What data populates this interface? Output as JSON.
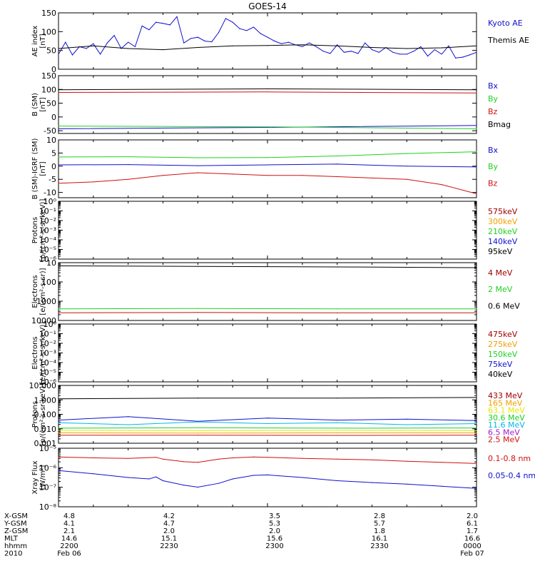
{
  "title": "GOES-14",
  "colors": {
    "black": "#000000",
    "blue": "#1010d0",
    "red": "#d01010",
    "green": "#20d020",
    "orange": "#f0a000",
    "yellow": "#e8e800",
    "cyan": "#00b8e8",
    "purple": "#a020d0",
    "darkred": "#a00000"
  },
  "chart_data": [
    {
      "type": "line",
      "panel": "ae",
      "ylabel": [
        "AE index",
        "[nT]"
      ],
      "ylim": [
        0,
        150
      ],
      "scale": "linear",
      "yticks": [
        "0",
        "50",
        "100",
        "150"
      ],
      "legend": [
        {
          "label": "Kyoto AE",
          "color": "blue"
        },
        {
          "label": "Themis AE",
          "color": "black"
        }
      ],
      "series": [
        {
          "name": "Kyoto AE",
          "color": "blue",
          "x": [
            0,
            1,
            2,
            3,
            4,
            5,
            6,
            7,
            8,
            9,
            10,
            11,
            12,
            13,
            14,
            15,
            16,
            17,
            18,
            19,
            20,
            21,
            22,
            23,
            24,
            25,
            26,
            27,
            28,
            29,
            30,
            31,
            32,
            33,
            34,
            35,
            36,
            37,
            38,
            39,
            40,
            41,
            42,
            43,
            44,
            45,
            46,
            47,
            48,
            49,
            50,
            51,
            52,
            53,
            54,
            55,
            56,
            57,
            58,
            59,
            60
          ],
          "y": [
            40,
            72,
            38,
            60,
            55,
            68,
            40,
            70,
            90,
            55,
            72,
            60,
            115,
            105,
            125,
            122,
            118,
            140,
            70,
            82,
            85,
            75,
            73,
            98,
            135,
            125,
            108,
            103,
            112,
            95,
            85,
            75,
            68,
            72,
            65,
            60,
            70,
            60,
            48,
            42,
            65,
            45,
            48,
            42,
            70,
            52,
            45,
            58,
            45,
            40,
            40,
            48,
            60,
            35,
            52,
            40,
            62,
            30,
            32,
            38,
            45
          ]
        },
        {
          "name": "Themis AE",
          "color": "black",
          "x": [
            0,
            5,
            10,
            15,
            20,
            25,
            30,
            35,
            40,
            45,
            50,
            55,
            60
          ],
          "y": [
            55,
            62,
            55,
            52,
            58,
            62,
            63,
            65,
            62,
            58,
            55,
            57,
            62
          ]
        }
      ]
    },
    {
      "type": "line",
      "panel": "b_sm",
      "ylabel": [
        "B (SM)",
        "[nT]"
      ],
      "ylim": [
        -60,
        150
      ],
      "scale": "linear",
      "yticks": [
        "-50",
        "0",
        "50",
        "100",
        "150"
      ],
      "legend": [
        {
          "label": "Bx",
          "color": "blue"
        },
        {
          "label": "By",
          "color": "green"
        },
        {
          "label": "Bz",
          "color": "red"
        },
        {
          "label": "Bmag",
          "color": "black"
        }
      ],
      "series": [
        {
          "name": "Bmag",
          "color": "black",
          "x": [
            0,
            30,
            60
          ],
          "y": [
            99,
            102,
            99
          ]
        },
        {
          "name": "Bz",
          "color": "red",
          "x": [
            0,
            30,
            60
          ],
          "y": [
            89,
            91,
            87
          ]
        },
        {
          "name": "Bx",
          "color": "blue",
          "x": [
            0,
            30,
            60
          ],
          "y": [
            -43,
            -38,
            -31
          ]
        },
        {
          "name": "By",
          "color": "green",
          "x": [
            0,
            30,
            60
          ],
          "y": [
            -33,
            -36,
            -43
          ]
        }
      ]
    },
    {
      "type": "line",
      "panel": "b_igrf",
      "ylabel": [
        "B (SM)-IGRF (SM)",
        "[nT]"
      ],
      "ylim": [
        -12,
        10
      ],
      "scale": "linear",
      "yticks": [
        "-10",
        "-5",
        "0",
        "5",
        "10"
      ],
      "legend": [
        {
          "label": "Bx",
          "color": "blue"
        },
        {
          "label": "By",
          "color": "green"
        },
        {
          "label": "Bz",
          "color": "red"
        }
      ],
      "series": [
        {
          "name": "By",
          "color": "green",
          "x": [
            0,
            10,
            20,
            30,
            40,
            50,
            60
          ],
          "y": [
            3.5,
            3.6,
            3.2,
            3.3,
            3.9,
            4.8,
            5.5
          ]
        },
        {
          "name": "Bx",
          "color": "blue",
          "x": [
            0,
            10,
            20,
            30,
            40,
            50,
            60
          ],
          "y": [
            0.5,
            0.6,
            0.2,
            0.5,
            0.8,
            0.0,
            -0.3
          ]
        },
        {
          "name": "Bz",
          "color": "red",
          "x": [
            0,
            5,
            10,
            15,
            20,
            25,
            30,
            35,
            40,
            45,
            50,
            55,
            60
          ],
          "y": [
            -6.5,
            -6,
            -5,
            -3.5,
            -2.5,
            -3,
            -3.5,
            -3.5,
            -4,
            -4.5,
            -5,
            -7,
            -10.5
          ]
        }
      ]
    },
    {
      "type": "line",
      "panel": "protons_low",
      "ylabel": [
        "Protons",
        "[p/(cm²-s-sr-keV)]"
      ],
      "ylim": [
        1e-06,
        1
      ],
      "scale": "log",
      "yticks": [
        "10⁰",
        "10⁻¹",
        "10⁻²",
        "10⁻³",
        "10⁻⁴",
        "10⁻⁵",
        "10⁻⁶"
      ],
      "legend": [
        {
          "label": "575keV",
          "color": "darkred"
        },
        {
          "label": "300keV",
          "color": "orange"
        },
        {
          "label": "210keV",
          "color": "green"
        },
        {
          "label": "140keV",
          "color": "blue"
        },
        {
          "label": "95keV",
          "color": "black"
        }
      ],
      "series": []
    },
    {
      "type": "line",
      "panel": "electrons_high",
      "ylabel": [
        "Electrons",
        "[e/(cm²-s-sr)]"
      ],
      "ylim": [
        10,
        10000
      ],
      "scale": "log",
      "yticks": [
        "10",
        "100",
        "1000",
        "10000"
      ],
      "legend": [
        {
          "label": "4 MeV",
          "color": "darkred"
        },
        {
          "label": "2 MeV",
          "color": "green"
        },
        {
          "label": "0.6 MeV",
          "color": "black"
        }
      ],
      "series": [
        {
          "name": "0.6 MeV",
          "color": "black",
          "x": [
            0,
            20,
            40,
            60
          ],
          "y": [
            6800,
            6400,
            6000,
            5500
          ]
        },
        {
          "name": "2 MeV",
          "color": "green",
          "x": [
            0,
            20,
            40,
            60
          ],
          "y": [
            40,
            42,
            40,
            40
          ]
        },
        {
          "name": "4 MeV",
          "color": "red",
          "x": [
            0,
            20,
            40,
            60
          ],
          "y": [
            25,
            26,
            25,
            25
          ]
        }
      ]
    },
    {
      "type": "line",
      "panel": "electrons_low",
      "ylabel": [
        "Electrons",
        "[e/(cm²-s-sr-keV)]"
      ],
      "ylim": [
        1e-06,
        1
      ],
      "scale": "log",
      "yticks": [
        "10⁰",
        "10⁻¹",
        "10⁻²",
        "10⁻³",
        "10⁻⁴",
        "10⁻⁵",
        "10⁻⁶"
      ],
      "legend": [
        {
          "label": "475keV",
          "color": "darkred"
        },
        {
          "label": "275keV",
          "color": "orange"
        },
        {
          "label": "150keV",
          "color": "green"
        },
        {
          "label": "75keV",
          "color": "blue"
        },
        {
          "label": "40keV",
          "color": "black"
        }
      ],
      "series": []
    },
    {
      "type": "line",
      "panel": "protons_high",
      "ylabel": [
        "Protons",
        "[p/(cm²-s-sr-keV)]"
      ],
      "ylim": [
        0.001,
        100
      ],
      "scale": "log",
      "yticks": [
        "10.000",
        "1.000",
        "0.100",
        "0.010",
        "0.001"
      ],
      "legend": [
        {
          "label": "433 MeV",
          "color": "darkred"
        },
        {
          "label": "165 MeV",
          "color": "orange"
        },
        {
          "label": "63.1 MeV",
          "color": "yellow"
        },
        {
          "label": "30.6 MeV",
          "color": "green"
        },
        {
          "label": "11.6 MeV",
          "color": "cyan"
        },
        {
          "label": "6.5 MeV",
          "color": "purple"
        },
        {
          "label": "2.5 MeV",
          "color": "red"
        }
      ],
      "series": [
        {
          "name": "2.5 MeV",
          "color": "black",
          "x": [
            0,
            20,
            40,
            60
          ],
          "y": [
            7,
            8,
            8,
            9
          ]
        },
        {
          "name": "6.5 MeV",
          "color": "blue",
          "x": [
            0,
            10,
            20,
            30,
            40,
            50,
            60
          ],
          "y": [
            0.1,
            0.2,
            0.08,
            0.15,
            0.1,
            0.12,
            0.09
          ]
        },
        {
          "name": "11.6 MeV",
          "color": "cyan",
          "x": [
            0,
            10,
            20,
            30,
            40,
            50,
            60
          ],
          "y": [
            0.06,
            0.04,
            0.07,
            0.05,
            0.06,
            0.04,
            0.05
          ]
        },
        {
          "name": "30.6 MeV",
          "color": "green",
          "x": [
            0,
            20,
            40,
            60
          ],
          "y": [
            0.02,
            0.022,
            0.02,
            0.021
          ]
        },
        {
          "name": "63.1 MeV",
          "color": "yellow",
          "x": [
            0,
            20,
            40,
            60
          ],
          "y": [
            0.013,
            0.012,
            0.013,
            0.012
          ]
        },
        {
          "name": "165 MeV",
          "color": "orange",
          "x": [
            0,
            20,
            40,
            60
          ],
          "y": [
            0.008,
            0.0075,
            0.008,
            0.0078
          ]
        },
        {
          "name": "433 MeV",
          "color": "red",
          "x": [
            0,
            20,
            40,
            60
          ],
          "y": [
            0.005,
            0.005,
            0.0048,
            0.005
          ]
        }
      ]
    },
    {
      "type": "line",
      "panel": "xray",
      "ylabel": [
        "Xray Flux",
        "[W/m²]"
      ],
      "ylim": [
        1e-09,
        1e-05
      ],
      "scale": "log",
      "yticks": [
        "10⁻⁵",
        "10⁻⁶",
        "10⁻⁷",
        "10⁻⁸"
      ],
      "legend": [
        {
          "label": "0.1-0.8 nm",
          "color": "red"
        },
        {
          "label": "0.05-0.4 nm",
          "color": "blue"
        }
      ],
      "series": [
        {
          "name": "0.1-0.8 nm",
          "color": "red",
          "x": [
            0,
            5,
            10,
            14,
            15,
            18,
            20,
            23,
            25,
            28,
            30,
            35,
            40,
            45,
            50,
            55,
            60
          ],
          "y": [
            2.5e-06,
            2.2e-06,
            2e-06,
            2.4e-06,
            1.8e-06,
            1.2e-06,
            1.1e-06,
            1.8e-06,
            2.2e-06,
            2.5e-06,
            2.4e-06,
            2e-06,
            1.8e-06,
            1.6e-06,
            1.3e-06,
            1.1e-06,
            9e-07
          ]
        },
        {
          "name": "0.05-0.4 nm",
          "color": "blue",
          "x": [
            0,
            5,
            10,
            13,
            14,
            15,
            18,
            20,
            23,
            25,
            28,
            30,
            35,
            40,
            45,
            50,
            55,
            60
          ],
          "y": [
            3e-07,
            1.8e-07,
            1e-07,
            8e-08,
            1.1e-07,
            6e-08,
            3e-08,
            2.2e-08,
            4e-08,
            8e-08,
            1.4e-07,
            1.5e-07,
            1e-07,
            6e-08,
            4.5e-08,
            3.5e-08,
            2.5e-08,
            1.8e-08
          ]
        }
      ]
    }
  ],
  "footer": {
    "row_labels": [
      "X-GSM",
      "Y-GSM",
      "Z-GSM",
      "MLT",
      "hhmm",
      "2010"
    ],
    "columns": [
      {
        "values": [
          "4.8",
          "4.1",
          "2.1",
          "14.6",
          "2200",
          "Feb 06"
        ]
      },
      {
        "values": [
          "4.2",
          "4.7",
          "2.0",
          "15.1",
          "2230",
          ""
        ]
      },
      {
        "values": [
          "3.5",
          "5.3",
          "2.0",
          "15.6",
          "2300",
          ""
        ]
      },
      {
        "values": [
          "2.8",
          "5.7",
          "1.8",
          "16.1",
          "2330",
          ""
        ]
      },
      {
        "values": [
          "2.0",
          "6.1",
          "1.7",
          "16.6",
          "0000",
          "Feb 07"
        ]
      }
    ]
  }
}
